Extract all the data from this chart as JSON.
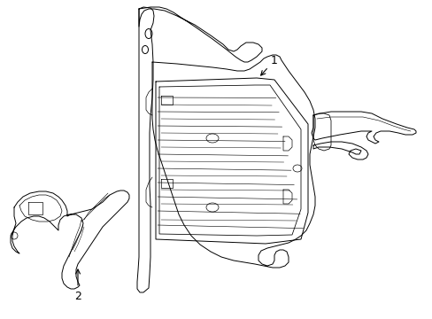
{
  "background_color": "#ffffff",
  "line_color": "#000000",
  "lw": 0.7,
  "figsize": [
    4.89,
    3.6
  ],
  "dpi": 100,
  "label1": "1",
  "label2": "2"
}
